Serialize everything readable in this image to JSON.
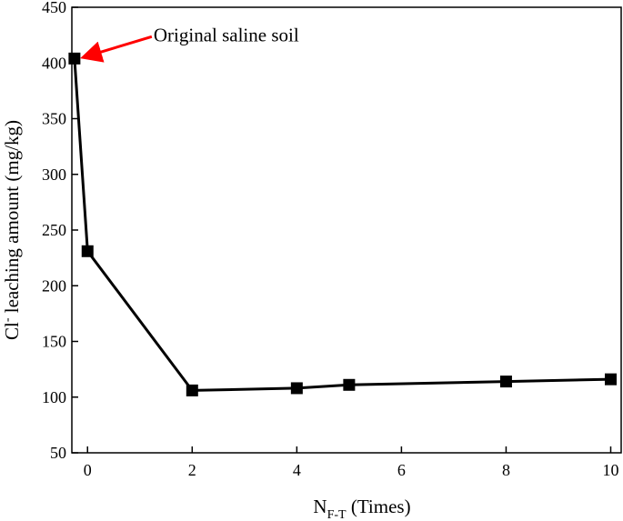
{
  "chart_data": {
    "type": "line",
    "x": [
      -0.25,
      0,
      2,
      4,
      5,
      8,
      10
    ],
    "series": [
      {
        "values": [
          404,
          231,
          106,
          108,
          111,
          114,
          116
        ]
      }
    ],
    "xlabel": {
      "main": "N",
      "subscript": "F-T",
      "suffix": " (Times)"
    },
    "ylabel": {
      "prefix": "Cl",
      "superscript": "-",
      "suffix": " leaching amount (mg/kg)"
    },
    "xlim": [
      -0.3,
      10.2
    ],
    "ylim": [
      50,
      450
    ],
    "x_ticks": [
      0,
      2,
      4,
      6,
      8,
      10
    ],
    "y_ticks": [
      50,
      100,
      150,
      200,
      250,
      300,
      350,
      400,
      450
    ],
    "grid": false,
    "annotations": [
      {
        "text": "Original saline soil",
        "x": -0.25,
        "y": 404,
        "arrow_color": "#ff0000"
      }
    ],
    "colors": {
      "line": "#000000",
      "marker": "#000000",
      "arrow": "#ff0000"
    }
  }
}
